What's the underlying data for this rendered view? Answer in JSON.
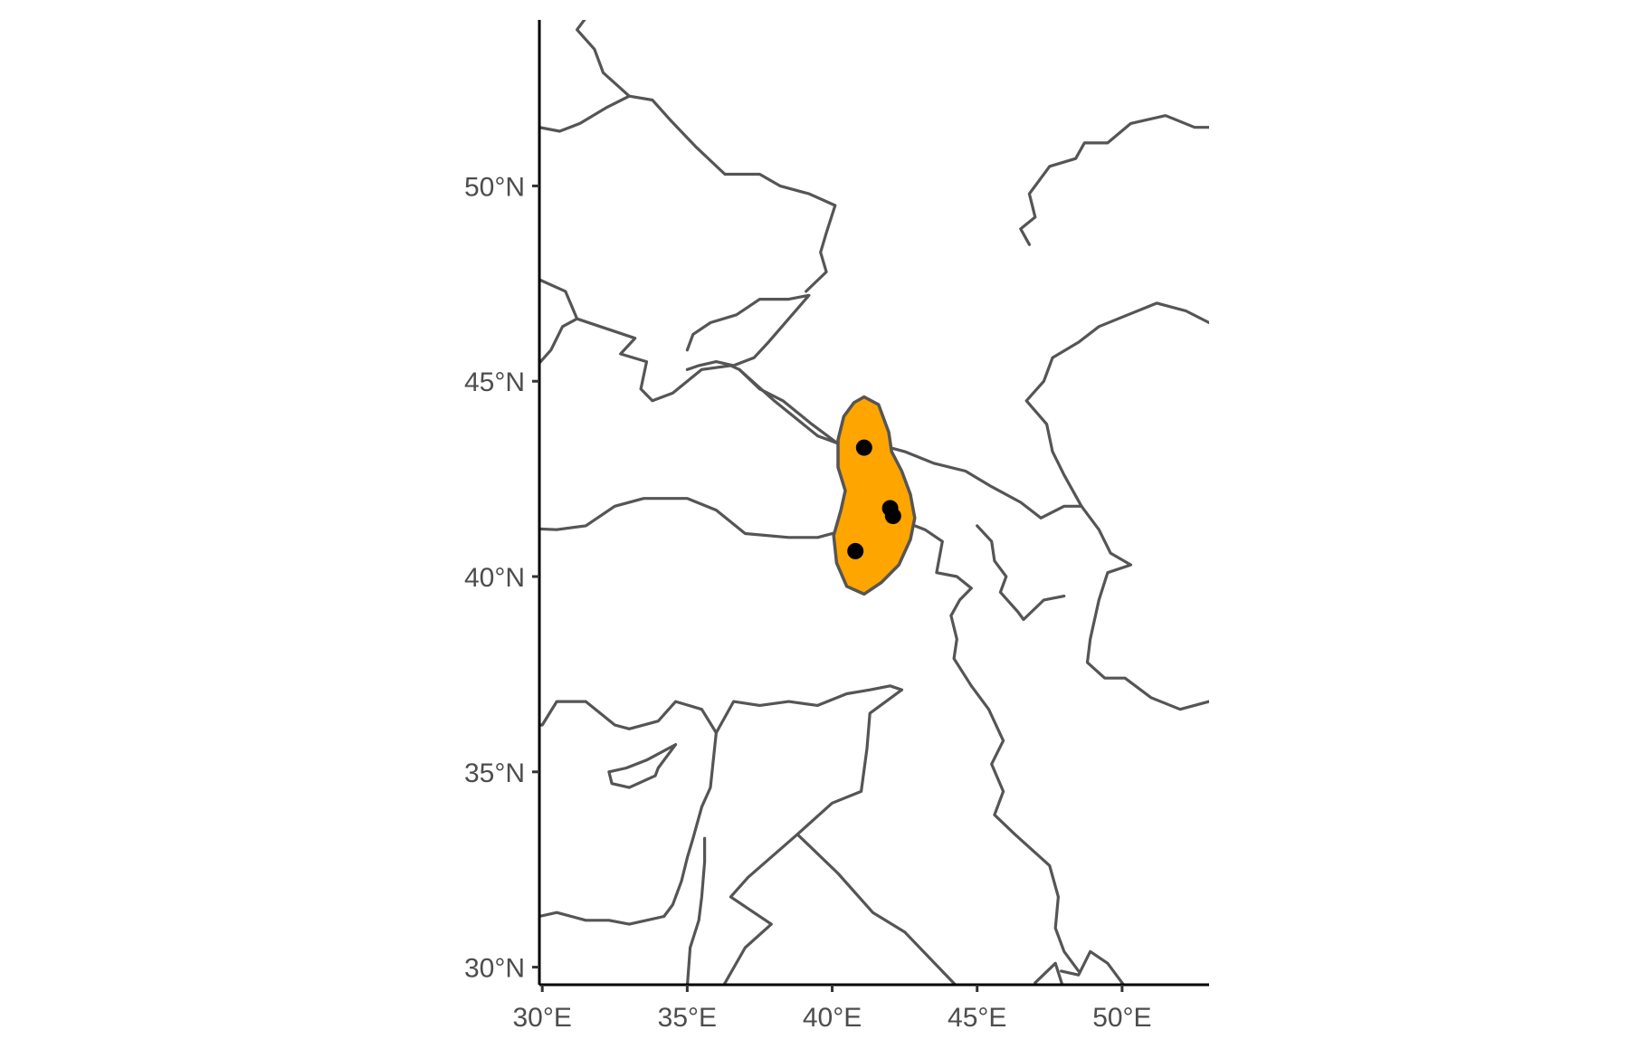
{
  "chart_data": {
    "type": "scatter",
    "title": "",
    "xlabel": "",
    "ylabel": "",
    "xlim": [
      29.9,
      53.0
    ],
    "ylim": [
      29.55,
      54.25
    ],
    "x_ticks": [
      {
        "value": 30,
        "label": "30°E"
      },
      {
        "value": 35,
        "label": "35°E"
      },
      {
        "value": 40,
        "label": "40°E"
      },
      {
        "value": 45,
        "label": "45°E"
      },
      {
        "value": 50,
        "label": "50°E"
      }
    ],
    "y_ticks": [
      {
        "value": 30,
        "label": "30°N"
      },
      {
        "value": 35,
        "label": "35°N"
      },
      {
        "value": 40,
        "label": "40°N"
      },
      {
        "value": 45,
        "label": "45°N"
      },
      {
        "value": 50,
        "label": "50°N"
      }
    ],
    "points": [
      {
        "lon": 41.1,
        "lat": 43.3
      },
      {
        "lon": 42.0,
        "lat": 41.75
      },
      {
        "lon": 42.1,
        "lat": 41.55
      },
      {
        "lon": 40.8,
        "lat": 40.65
      }
    ],
    "range_polygon": [
      [
        41.1,
        44.6
      ],
      [
        41.6,
        44.4
      ],
      [
        41.95,
        43.7
      ],
      [
        42.05,
        43.2
      ],
      [
        42.4,
        42.7
      ],
      [
        42.7,
        42.1
      ],
      [
        42.85,
        41.5
      ],
      [
        42.7,
        40.95
      ],
      [
        42.3,
        40.3
      ],
      [
        41.7,
        39.85
      ],
      [
        41.1,
        39.55
      ],
      [
        40.5,
        39.75
      ],
      [
        40.15,
        40.35
      ],
      [
        40.05,
        41.05
      ],
      [
        40.3,
        41.7
      ],
      [
        40.45,
        42.2
      ],
      [
        40.2,
        42.8
      ],
      [
        40.2,
        43.5
      ],
      [
        40.4,
        44.1
      ],
      [
        40.75,
        44.45
      ]
    ],
    "colors": {
      "range_fill": "#ffa500",
      "range_stroke": "#555555",
      "points": "#000000",
      "borders": "#555555",
      "axis": "#000000",
      "tick_labels": "#4d4d4d"
    },
    "grid": false,
    "legend": "none",
    "basemap": "country borders and coastlines (Eastern Europe, Black Sea, Caucasus, Anatolia, Levant)"
  }
}
